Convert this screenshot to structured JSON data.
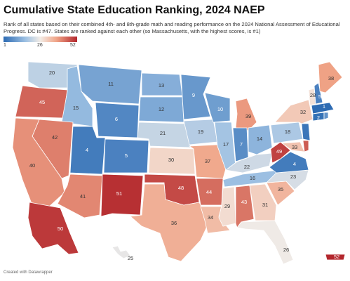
{
  "header": {
    "title": "Cumulative State Education Ranking, 2024 NAEP",
    "subtitle": "Rank of all states based on their combined 4th- and 8th-grade math and reading performance on the 2024 National Assessment of Educational Progress. DC is #47. States are ranked against each other (so Massachusetts, with the highest scores, is #1)"
  },
  "legend": {
    "min": "1",
    "mid": "26",
    "max": "52",
    "colors": [
      "#2d6bb3",
      "#9ec1e3",
      "#f3ece6",
      "#f0a487",
      "#b3272d"
    ]
  },
  "map": {
    "states": [
      {
        "state": "WA",
        "rank": "20"
      },
      {
        "state": "OR",
        "rank": "45"
      },
      {
        "state": "ID",
        "rank": "15"
      },
      {
        "state": "MT",
        "rank": "11"
      },
      {
        "state": "WY",
        "rank": "6"
      },
      {
        "state": "ND",
        "rank": "13"
      },
      {
        "state": "SD",
        "rank": "12"
      },
      {
        "state": "NE",
        "rank": "21"
      },
      {
        "state": "MN",
        "rank": "9"
      },
      {
        "state": "WI",
        "rank": "10"
      },
      {
        "state": "MI",
        "rank": "39"
      },
      {
        "state": "IA",
        "rank": "19"
      },
      {
        "state": "IL",
        "rank": "17"
      },
      {
        "state": "IN",
        "rank": "7"
      },
      {
        "state": "OH",
        "rank": "14"
      },
      {
        "state": "PA",
        "rank": "18"
      },
      {
        "state": "NY",
        "rank": "32"
      },
      {
        "state": "ME",
        "rank": "38"
      },
      {
        "state": "VT",
        "rank": "28"
      },
      {
        "state": "NH",
        "rank": "5"
      },
      {
        "state": "MA",
        "rank": "1"
      },
      {
        "state": "CT",
        "rank": "2"
      },
      {
        "state": "RI",
        "rank": "8"
      },
      {
        "state": "NJ",
        "rank": "3"
      },
      {
        "state": "DE",
        "rank": "46"
      },
      {
        "state": "MD",
        "rank": "33"
      },
      {
        "state": "WV",
        "rank": "49"
      },
      {
        "state": "VA",
        "rank": "4"
      },
      {
        "state": "NV",
        "rank": "42"
      },
      {
        "state": "CA",
        "rank": "40"
      },
      {
        "state": "UT",
        "rank": "4"
      },
      {
        "state": "CO",
        "rank": "5"
      },
      {
        "state": "AZ",
        "rank": "41"
      },
      {
        "state": "NM",
        "rank": "51"
      },
      {
        "state": "KS",
        "rank": "30"
      },
      {
        "state": "OK",
        "rank": "48"
      },
      {
        "state": "TX",
        "rank": "36"
      },
      {
        "state": "MO",
        "rank": "37"
      },
      {
        "state": "AR",
        "rank": "44"
      },
      {
        "state": "LA",
        "rank": "34"
      },
      {
        "state": "MS",
        "rank": "29"
      },
      {
        "state": "AL",
        "rank": "43"
      },
      {
        "state": "GA",
        "rank": "31"
      },
      {
        "state": "FL",
        "rank": "26"
      },
      {
        "state": "SC",
        "rank": "35"
      },
      {
        "state": "NC",
        "rank": "23"
      },
      {
        "state": "TN",
        "rank": "16"
      },
      {
        "state": "KY",
        "rank": "22"
      },
      {
        "state": "AK",
        "rank": "50"
      },
      {
        "state": "HI",
        "rank": "25"
      },
      {
        "state": "PR",
        "rank": "52"
      }
    ]
  },
  "footer": {
    "credit": "Created with Datawrapper"
  }
}
